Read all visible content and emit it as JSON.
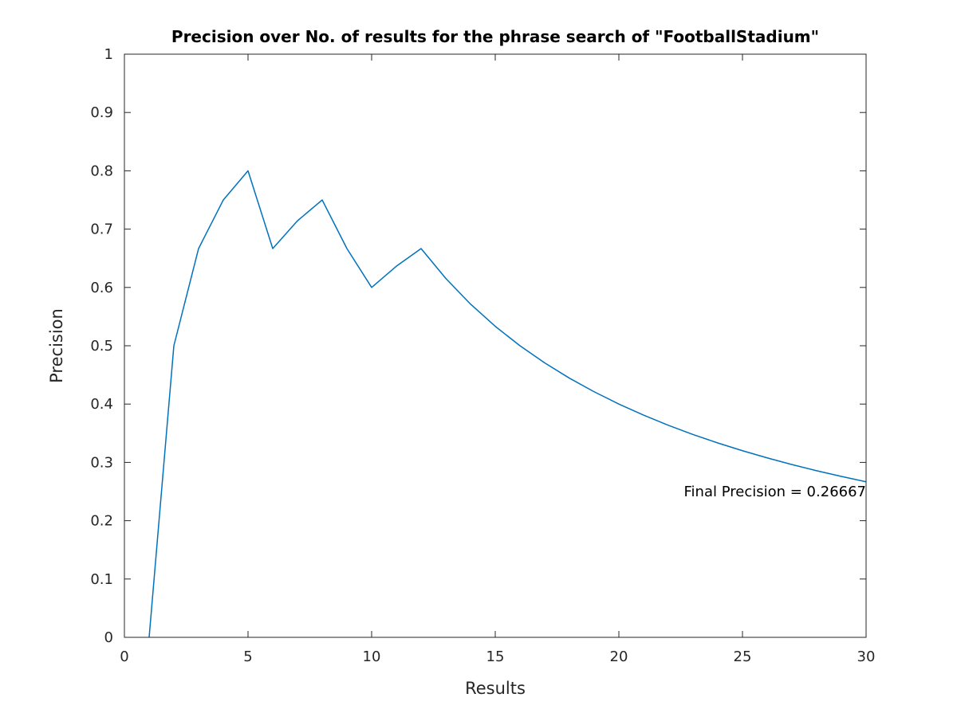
{
  "chart_data": {
    "type": "line",
    "title": "Precision over No. of results for the phrase search of \"FootballStadium\"",
    "xlabel": "Results",
    "ylabel": "Precision",
    "xlim": [
      0,
      30
    ],
    "ylim": [
      0,
      1
    ],
    "xticks": [
      0,
      5,
      10,
      15,
      20,
      25,
      30
    ],
    "yticks": [
      0,
      0.1,
      0.2,
      0.3,
      0.4,
      0.5,
      0.6,
      0.7,
      0.8,
      0.9,
      1
    ],
    "xtick_labels": [
      "0",
      "5",
      "10",
      "15",
      "20",
      "25",
      "30"
    ],
    "ytick_labels": [
      "0",
      "0.1",
      "0.2",
      "0.3",
      "0.4",
      "0.5",
      "0.6",
      "0.7",
      "0.8",
      "0.9",
      "1"
    ],
    "grid": false,
    "box": true,
    "series": [
      {
        "color": "#0072bd",
        "x": [
          1,
          2,
          3,
          4,
          5,
          6,
          7,
          8,
          9,
          10,
          11,
          12,
          13,
          14,
          15,
          16,
          17,
          18,
          19,
          20,
          21,
          22,
          23,
          24,
          25,
          26,
          27,
          28,
          29,
          30
        ],
        "y": [
          0,
          0.5,
          0.6667,
          0.75,
          0.8,
          0.6667,
          0.7143,
          0.75,
          0.6667,
          0.6,
          0.6364,
          0.6667,
          0.6154,
          0.5714,
          0.5333,
          0.5,
          0.4706,
          0.4444,
          0.4211,
          0.4,
          0.381,
          0.3636,
          0.3478,
          0.3333,
          0.32,
          0.3077,
          0.2963,
          0.2857,
          0.2759,
          0.2667
        ]
      }
    ],
    "annotation": {
      "text": "Final Precision = 0.26667",
      "x": 30,
      "y": 0.26667,
      "align": "right"
    }
  }
}
